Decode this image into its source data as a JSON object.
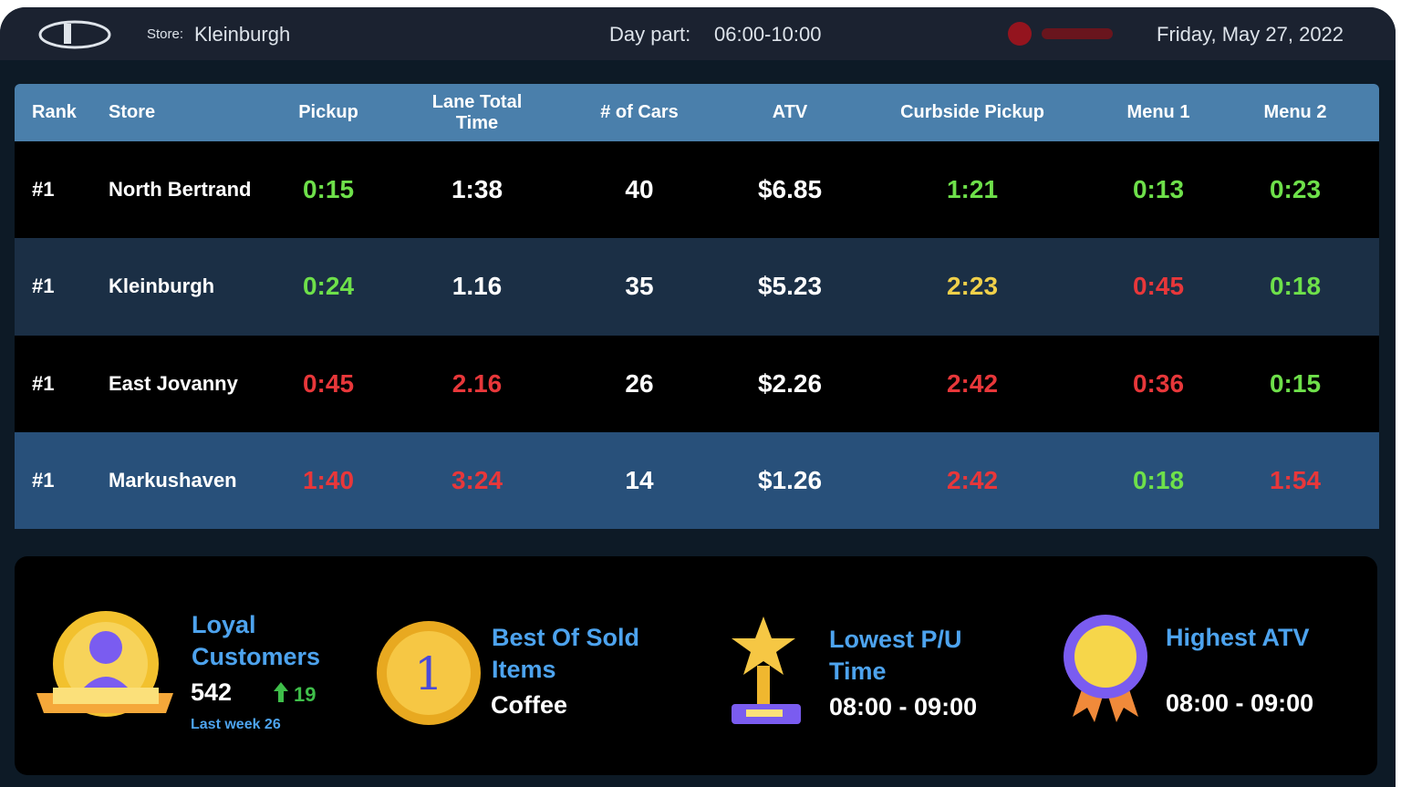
{
  "header": {
    "store_label": "Store:",
    "store": "Kleinburgh",
    "daypart_label": "Day part:",
    "daypart": "06:00-10:00",
    "date": "Friday, May 27, 2022"
  },
  "table": {
    "columns": [
      "Rank",
      "Store",
      "Pickup",
      "Lane Total Time",
      "# of Cars",
      "ATV",
      "Curbside Pickup",
      "Menu 1",
      "Menu 2"
    ],
    "rows": [
      {
        "cells": [
          "#1",
          "North Bertrand",
          "0:15",
          "1:38",
          "40",
          "$6.85",
          "1:21",
          "0:13",
          "0:23"
        ],
        "colors": [
          "#ffffff",
          "#ffffff",
          "#6ee04a",
          "#ffffff",
          "#ffffff",
          "#ffffff",
          "#6ee04a",
          "#6ee04a",
          "#6ee04a"
        ]
      },
      {
        "cells": [
          "#1",
          "Kleinburgh",
          "0:24",
          "1.16",
          "35",
          "$5.23",
          "2:23",
          "0:45",
          "0:18"
        ],
        "colors": [
          "#ffffff",
          "#ffffff",
          "#6ee04a",
          "#ffffff",
          "#ffffff",
          "#ffffff",
          "#f0d04a",
          "#e8373a",
          "#6ee04a"
        ]
      },
      {
        "cells": [
          "#1",
          "East Jovanny",
          "0:45",
          "2.16",
          "26",
          "$2.26",
          "2:42",
          "0:36",
          "0:15"
        ],
        "colors": [
          "#ffffff",
          "#ffffff",
          "#e8373a",
          "#e8373a",
          "#ffffff",
          "#ffffff",
          "#e8373a",
          "#e8373a",
          "#6ee04a"
        ]
      },
      {
        "cells": [
          "#1",
          "Markushaven",
          "1:40",
          "3:24",
          "14",
          "$1.26",
          "2:42",
          "0:18",
          "1:54"
        ],
        "colors": [
          "#ffffff",
          "#ffffff",
          "#e8373a",
          "#e8373a",
          "#ffffff",
          "#ffffff",
          "#e8373a",
          "#6ee04a",
          "#e8373a"
        ]
      }
    ]
  },
  "cards": [
    {
      "title": "Loyal Customers",
      "value": "542",
      "change": "19",
      "note": "Last week 26"
    },
    {
      "title": "Best Of Sold Items",
      "value": "Coffee"
    },
    {
      "title": "Lowest P/U Time",
      "value": "08:00 - 09:00"
    },
    {
      "title": "Highest ATV",
      "value": "08:00 - 09:00"
    }
  ]
}
